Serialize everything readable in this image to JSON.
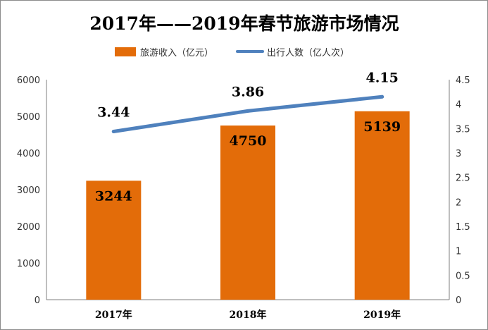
{
  "chart_data": {
    "type": "bar",
    "title": "2017年——2019年春节旅游市场情况",
    "categories": [
      "2017年",
      "2018年",
      "2019年"
    ],
    "series": [
      {
        "name": "旅游收入（亿元）",
        "type": "bar",
        "axis": "left",
        "color": "#E36C09",
        "values": [
          3244,
          4750,
          5139
        ],
        "labels": [
          "3244",
          "4750",
          "5139"
        ]
      },
      {
        "name": "出行人数（亿人次）",
        "type": "line",
        "axis": "right",
        "color": "#4F81BD",
        "values": [
          3.44,
          3.86,
          4.15
        ],
        "labels": [
          "3.44",
          "3.86",
          "4.15"
        ]
      }
    ],
    "y_left": {
      "range": [
        0,
        6000
      ],
      "ticks": [
        "0",
        "1000",
        "2000",
        "3000",
        "4000",
        "5000",
        "6000"
      ]
    },
    "y_right": {
      "range": [
        0,
        4.5
      ],
      "ticks": [
        "0",
        "0.5",
        "1",
        "1.5",
        "2",
        "2.5",
        "3",
        "3.5",
        "4",
        "4.5"
      ]
    },
    "legend_position": "top",
    "grid": false
  }
}
